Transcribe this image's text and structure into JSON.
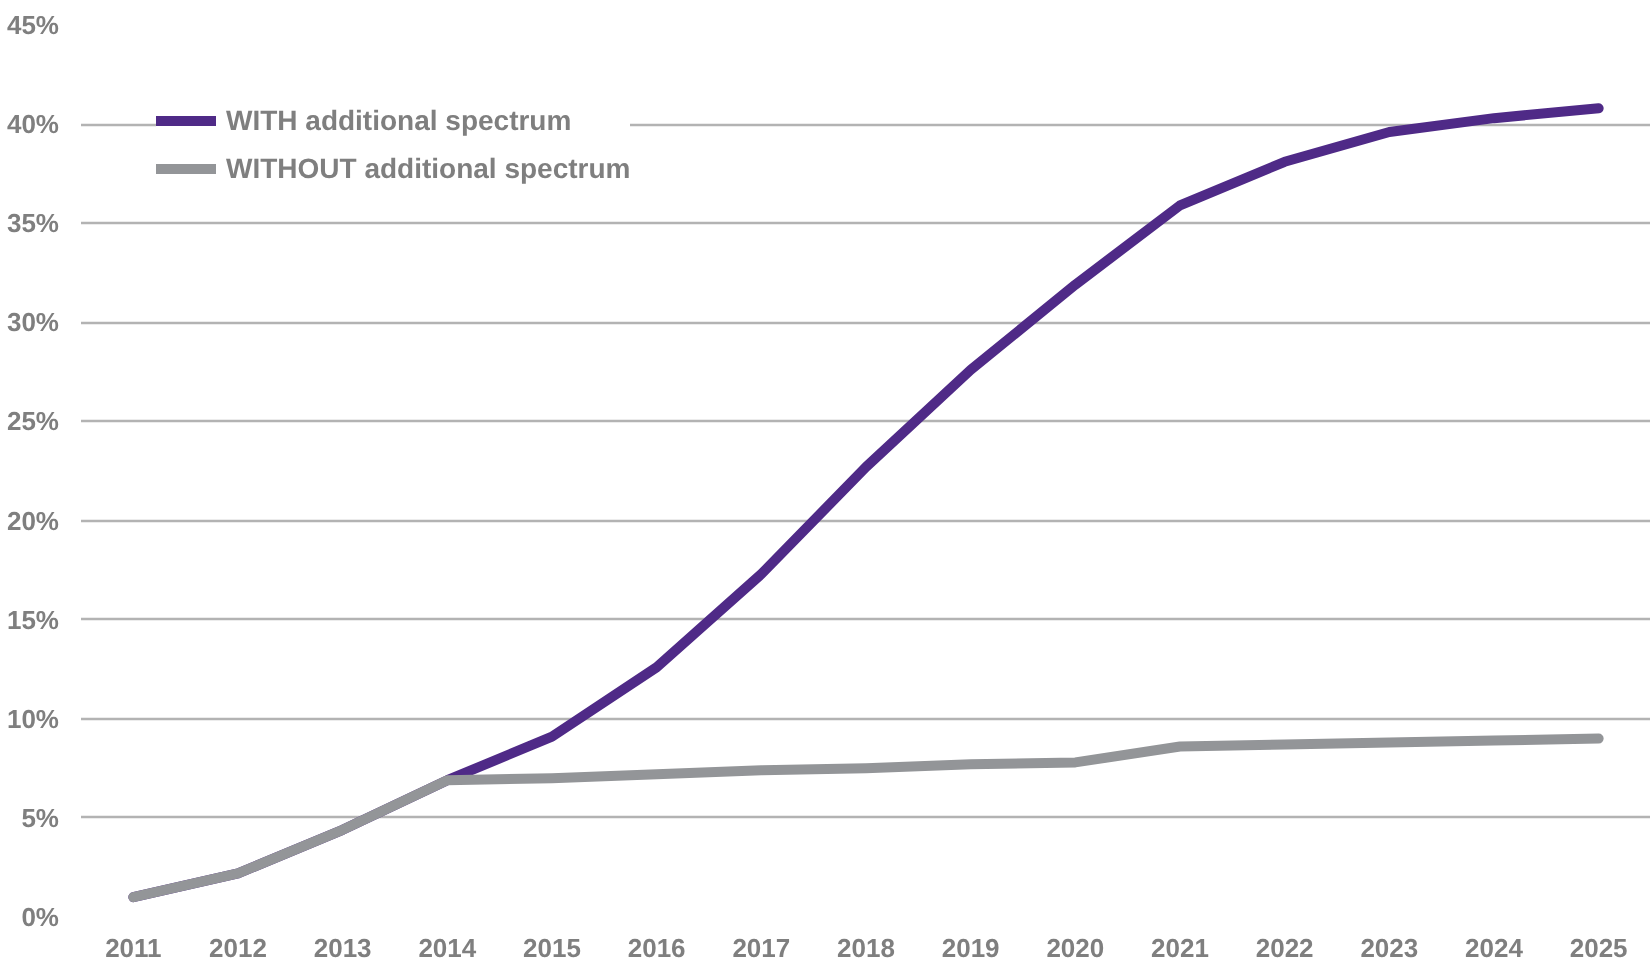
{
  "chart_data": {
    "type": "line",
    "categories": [
      "2011",
      "2012",
      "2013",
      "2014",
      "2015",
      "2016",
      "2017",
      "2018",
      "2019",
      "2020",
      "2021",
      "2022",
      "2023",
      "2024",
      "2025"
    ],
    "series": [
      {
        "name": "WITH additional spectrum",
        "color": "#4f2a87",
        "values": [
          1.0,
          2.2,
          4.4,
          6.9,
          9.1,
          12.6,
          17.3,
          22.7,
          27.6,
          31.9,
          35.9,
          38.1,
          39.6,
          40.3,
          40.8
        ]
      },
      {
        "name": "WITHOUT additional spectrum",
        "color": "#939598",
        "values": [
          1.0,
          2.2,
          4.4,
          6.9,
          7.0,
          7.2,
          7.4,
          7.5,
          7.7,
          7.8,
          8.6,
          8.7,
          8.8,
          8.9,
          9.0
        ]
      }
    ],
    "ylim": [
      0,
      45
    ],
    "yticks": [
      {
        "value": 0,
        "label": "0%"
      },
      {
        "value": 5,
        "label": "5%"
      },
      {
        "value": 10,
        "label": "10%"
      },
      {
        "value": 15,
        "label": "15%"
      },
      {
        "value": 20,
        "label": "20%"
      },
      {
        "value": 25,
        "label": "25%"
      },
      {
        "value": 30,
        "label": "30%"
      },
      {
        "value": 35,
        "label": "35%"
      },
      {
        "value": 40,
        "label": "40%"
      },
      {
        "value": 45,
        "label": "45%"
      }
    ],
    "grid": "y",
    "legend": "top left",
    "marker": "none",
    "line_style": "solid"
  }
}
